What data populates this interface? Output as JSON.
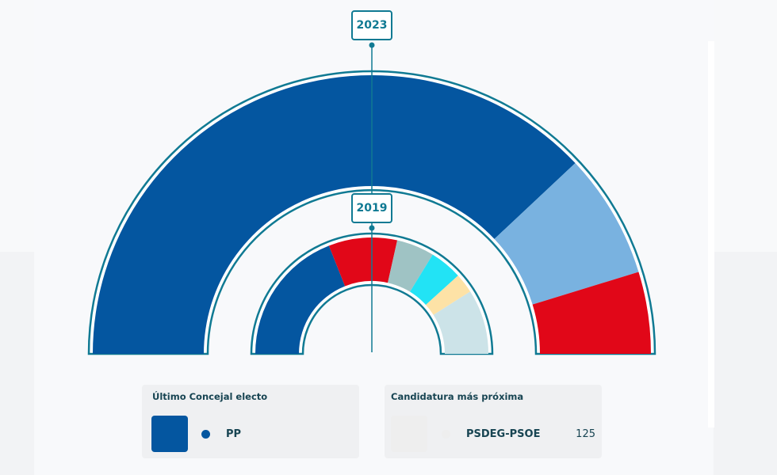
{
  "chart_data": [
    {
      "type": "pie",
      "subtype": "half-donut",
      "title": "2023",
      "series": [
        {
          "name": "PP",
          "value": 76,
          "color": "#0456a0"
        },
        {
          "name": "",
          "value": 14.5,
          "color": "#79b2e0"
        },
        {
          "name": "PSDEG-PSOE",
          "value": 9.5,
          "color": "#e10718"
        }
      ]
    },
    {
      "type": "pie",
      "subtype": "half-donut",
      "title": "2019",
      "series": [
        {
          "name": "PP",
          "value": 38,
          "color": "#0456a0"
        },
        {
          "name": "PSDEG-PSOE",
          "value": 19,
          "color": "#e10718"
        },
        {
          "name": "",
          "value": 10.5,
          "color": "#9fc3c4"
        },
        {
          "name": "",
          "value": 9,
          "color": "#22e3f5"
        },
        {
          "name": "",
          "value": 5.5,
          "color": "#fde2a6"
        },
        {
          "name": "",
          "value": 18,
          "color": "#cce3e8"
        }
      ]
    }
  ],
  "panels": {
    "last": {
      "title": "Último Concejal electo",
      "party": "PP",
      "color": "#0456a0"
    },
    "next": {
      "title": "Candidatura más próxima",
      "party": "PSDEG-PSOE",
      "votes": "125",
      "color": "#eeeeee"
    }
  }
}
